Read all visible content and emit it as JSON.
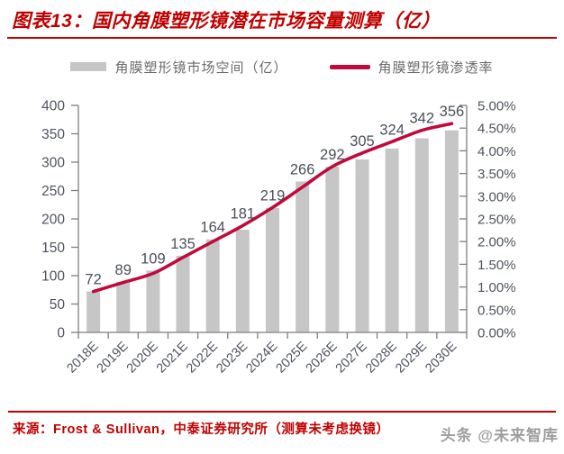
{
  "header": {
    "title": "图表13：国内角膜塑形镜潜在市场容量测算（亿）"
  },
  "chart_data": {
    "type": "bar",
    "combo": "bar+line",
    "title": "国内角膜塑形镜潜在市场容量测算（亿）",
    "categories": [
      "2018E",
      "2019E",
      "2020E",
      "2021E",
      "2022E",
      "2023E",
      "2024E",
      "2025E",
      "2026E",
      "2027E",
      "2028E",
      "2029E",
      "2030E"
    ],
    "series": [
      {
        "name": "角膜塑形镜市场空间（亿）",
        "type": "bar",
        "axis": "left",
        "values": [
          72,
          89,
          109,
          135,
          164,
          181,
          219,
          266,
          292,
          305,
          324,
          342,
          356
        ]
      },
      {
        "name": "角膜塑形镜渗透率",
        "type": "line",
        "axis": "right",
        "unit": "%",
        "values": [
          0.9,
          1.1,
          1.3,
          1.65,
          2.0,
          2.35,
          2.75,
          3.2,
          3.65,
          3.95,
          4.2,
          4.45,
          4.6
        ]
      }
    ],
    "left_axis": {
      "min": 0,
      "max": 400,
      "step": 50
    },
    "right_axis": {
      "min": 0,
      "max": 5,
      "step": 0.5,
      "format": "percent-2dp"
    },
    "bar_labels_shown": true,
    "grid": false,
    "legend_position": "top-center"
  },
  "source": {
    "text": "来源：Frost & Sullivan，中泰证券研究所（测算未考虑换镜）"
  },
  "watermark": {
    "text": "头条 @未来智库"
  },
  "colors": {
    "title_red": "#C00000",
    "bar": "#C6C6C6",
    "line": "#C00A3C",
    "axis": "#7F7F7F",
    "tick_text": "#4E545E",
    "bar_label_text": "#4A505A",
    "legend_text": "#6B6B6B",
    "watermark": "#969696"
  }
}
